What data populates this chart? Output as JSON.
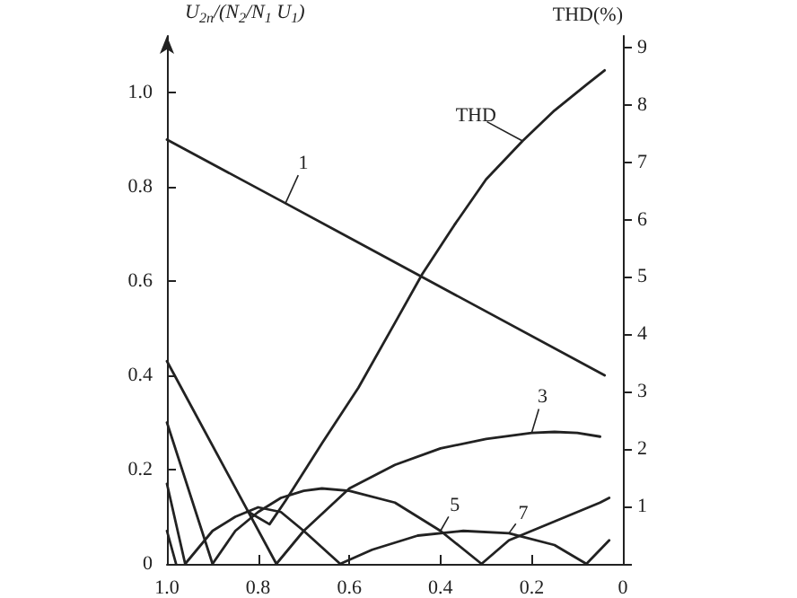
{
  "chart_data": {
    "type": "line",
    "ylabel": "U$_{2n}$/(N$_{2}$/N$_{1}$ U$_{1}$)",
    "y2label": "THD(%)",
    "xlim": [
      1.0,
      0
    ],
    "xticks": [
      {
        "value": 1.0,
        "label": "1.0"
      },
      0.8,
      0.6,
      0.4,
      0.2,
      0
    ],
    "ylim": [
      0,
      1.12
    ],
    "yticks": [
      0,
      0.2,
      0.4,
      0.6,
      0.8,
      {
        "value": 1.0,
        "label": "1.0"
      }
    ],
    "y2lim": [
      0,
      9.2
    ],
    "y2ticks": [
      {
        "value": 0,
        "label": null
      },
      1,
      2,
      3,
      4,
      5,
      6,
      7,
      8,
      9
    ],
    "grid": false,
    "legend": false,
    "marker": "none",
    "line_style": "solid",
    "series": [
      {
        "name": "1",
        "color": "#222222",
        "x": [
          1.0,
          0.74,
          0.04
        ],
        "values": [
          0.9,
          0.765,
          0.4
        ]
      },
      {
        "name": "3",
        "color": "#222222",
        "x": [
          1.0,
          0.76,
          0.7,
          0.6,
          0.5,
          0.4,
          0.3,
          0.2,
          0.15,
          0.1,
          0.05
        ],
        "values": [
          0.43,
          0,
          0.07,
          0.16,
          0.21,
          0.245,
          0.265,
          0.278,
          0.28,
          0.278,
          0.27
        ]
      },
      {
        "name": "5",
        "color": "#222222",
        "x": [
          1.0,
          0.9,
          0.85,
          0.8,
          0.75,
          0.7,
          0.66,
          0.6,
          0.5,
          0.4,
          0.31,
          0.25,
          0.15,
          0.05,
          0.03
        ],
        "values": [
          0.3,
          0,
          0.07,
          0.11,
          0.14,
          0.155,
          0.16,
          0.155,
          0.13,
          0.07,
          0,
          0.05,
          0.09,
          0.13,
          0.14
        ]
      },
      {
        "name": "7",
        "color": "#222222",
        "x": [
          1.0,
          0.96,
          0.9,
          0.85,
          0.8,
          0.75,
          0.7,
          0.62,
          0.55,
          0.45,
          0.35,
          0.25,
          0.15,
          0.08,
          0.03
        ],
        "values": [
          0.17,
          0,
          0.07,
          0.1,
          0.12,
          0.11,
          0.07,
          0,
          0.03,
          0.06,
          0.07,
          0.065,
          0.04,
          0,
          0.05
        ]
      },
      {
        "color": "#222222",
        "x": [
          1.0,
          0.98
        ],
        "values": [
          0.07,
          0
        ]
      },
      {
        "name": "THD",
        "color": "#222222",
        "axis": "y2",
        "x": [
          0.82,
          0.775,
          0.74,
          0.66,
          0.58,
          0.5,
          0.44,
          0.37,
          0.3,
          0.22,
          0.15,
          0.08,
          0.04
        ],
        "values": [
          0.9,
          0.69,
          1.1,
          2.1,
          3.07,
          4.2,
          5.05,
          5.9,
          6.7,
          7.37,
          7.9,
          8.35,
          8.6
        ]
      }
    ]
  }
}
